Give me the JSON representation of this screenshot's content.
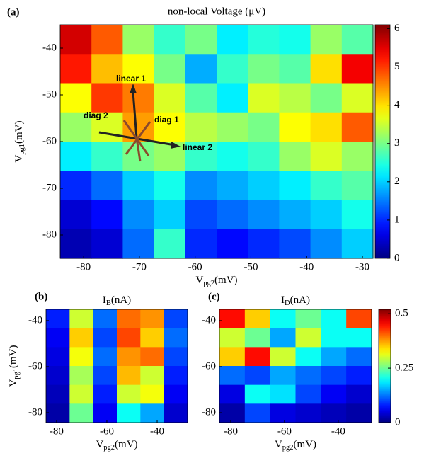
{
  "chart_data": [
    {
      "type": "heatmap",
      "panel_label": "(a)",
      "title": "non-local Voltage (μV)",
      "xlabel": {
        "main": "V",
        "sub": "pg2",
        "unit": "(mV)"
      },
      "ylabel": {
        "main": "V",
        "sub": "pg1",
        "unit": "(mV)"
      },
      "xlim": [
        -84.2,
        -28.1
      ],
      "ylim": [
        -85,
        -35
      ],
      "xticks": [
        -80,
        -70,
        -60,
        -50,
        -40,
        -30
      ],
      "yticks": [
        -40,
        -50,
        -60,
        -70,
        -80
      ],
      "colormap": "jet",
      "clim": [
        0,
        6.1
      ],
      "colorbar": true,
      "cticks": [
        0,
        1,
        2,
        3,
        4,
        5,
        6
      ],
      "annotations": [
        "linear 1",
        "linear 2",
        "diag 1",
        "diag 2"
      ],
      "z": [
        [
          5.6,
          4.8,
          3.2,
          2.6,
          3,
          2.2,
          2.5,
          2.4,
          3.2,
          2.8
        ],
        [
          5.2,
          4.2,
          3.8,
          3,
          1.8,
          2.6,
          3,
          2.8,
          4,
          5.4
        ],
        [
          3.8,
          5,
          4.6,
          3.6,
          2.8,
          2.2,
          3.6,
          3.4,
          3,
          3.6
        ],
        [
          3.2,
          3.6,
          4.4,
          3.8,
          3.4,
          3.2,
          3,
          3.8,
          4,
          4.8
        ],
        [
          2.2,
          2.6,
          3,
          3.2,
          2.6,
          2.4,
          2.6,
          3.2,
          3.6,
          3.2
        ],
        [
          1,
          1.4,
          2,
          2.4,
          1.6,
          1.8,
          2,
          2.2,
          2.6,
          2.8
        ],
        [
          0.5,
          0.8,
          1.6,
          2,
          1.2,
          1.4,
          1.6,
          1.8,
          2,
          2.4
        ],
        [
          0.3,
          0.5,
          1.4,
          2.6,
          1,
          0.8,
          1,
          1.2,
          1.6,
          2
        ]
      ]
    },
    {
      "type": "heatmap",
      "panel_label": "(b)",
      "title": {
        "main": "I",
        "sub": "B",
        "unit": "(nA)"
      },
      "xlabel": {
        "main": "V",
        "sub": "pg2",
        "unit": "(mV)"
      },
      "ylabel": {
        "main": "V",
        "sub": "pg1",
        "unit": "(mV)"
      },
      "xlim": [
        -84.2,
        -27.9
      ],
      "ylim": [
        -84.3,
        -35.1
      ],
      "xticks": [
        -80,
        -60,
        -40
      ],
      "yticks": [
        -40,
        -60,
        -80
      ],
      "colormap": "jet",
      "clim": [
        0,
        0.52
      ],
      "colorbar": false,
      "z": [
        [
          0.08,
          0.3,
          0.12,
          0.4,
          0.38,
          0.1
        ],
        [
          0.06,
          0.35,
          0.1,
          0.42,
          0.35,
          0.12
        ],
        [
          0.05,
          0.32,
          0.12,
          0.38,
          0.4,
          0.1
        ],
        [
          0.04,
          0.28,
          0.1,
          0.36,
          0.3,
          0.08
        ],
        [
          0.03,
          0.3,
          0.08,
          0.3,
          0.32,
          0.06
        ],
        [
          0.02,
          0.25,
          0.06,
          0.2,
          0.15,
          0.04
        ]
      ]
    },
    {
      "type": "heatmap",
      "panel_label": "(c)",
      "title": {
        "main": "I",
        "sub": "D",
        "unit": "(nA)"
      },
      "xlabel": {
        "main": "V",
        "sub": "pg2",
        "unit": "(mV)"
      },
      "xlim": [
        -84.2,
        -27.6
      ],
      "ylim": [
        -84.3,
        -35.1
      ],
      "xticks": [
        -80,
        -60,
        -40
      ],
      "yticks": [
        -40,
        -60,
        -80
      ],
      "colormap": "jet",
      "clim": [
        0,
        0.52
      ],
      "colorbar": true,
      "cticks": [
        0,
        0.25,
        0.5
      ],
      "z": [
        [
          0.45,
          0.35,
          0.2,
          0.25,
          0.2,
          0.42
        ],
        [
          0.3,
          0.25,
          0.15,
          0.3,
          0.2,
          0.2
        ],
        [
          0.35,
          0.45,
          0.3,
          0.2,
          0.15,
          0.12
        ],
        [
          0.12,
          0.1,
          0.15,
          0.12,
          0.1,
          0.08
        ],
        [
          0.05,
          0.2,
          0.18,
          0.1,
          0.06,
          0.04
        ],
        [
          0.02,
          0.1,
          0.05,
          0.04,
          0.03,
          0.02
        ]
      ]
    }
  ]
}
